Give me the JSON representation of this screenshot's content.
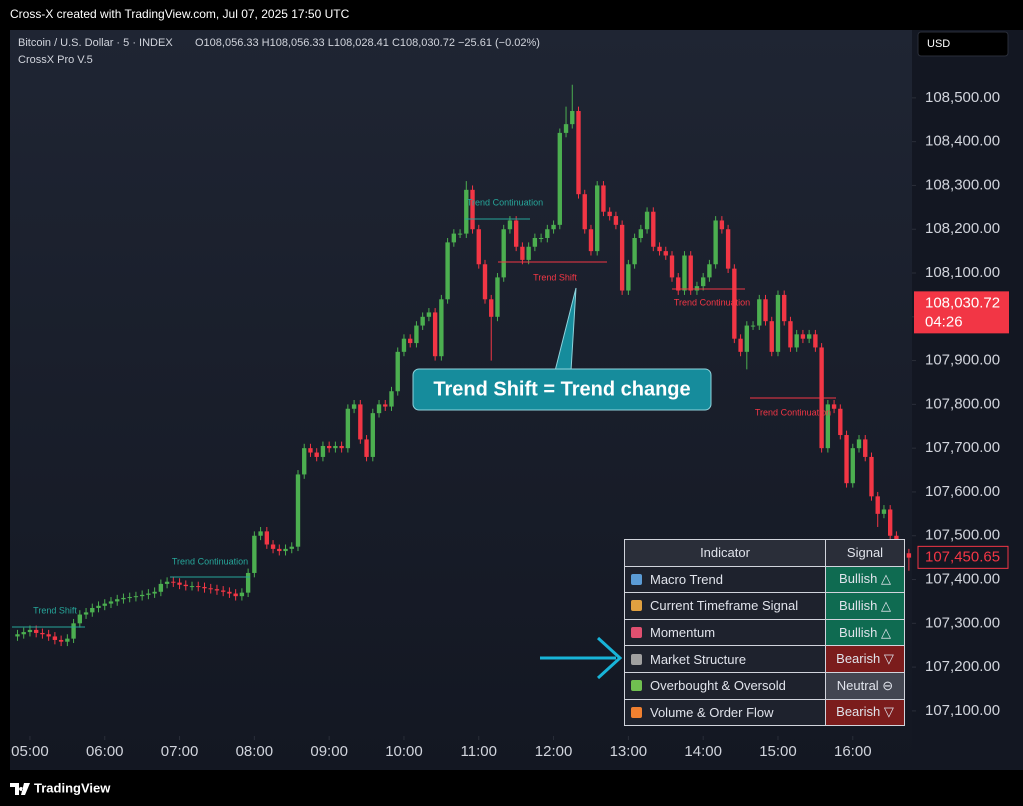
{
  "header": {
    "title": "Cross-X created with TradingView.com, Jul 07, 2025 17:50 UTC",
    "symbol": "Bitcoin / U.S. Dollar · 5 · INDEX",
    "ohlc": "O108,056.33 H108,056.33 L108,028.41 C108,030.72 −25.61 (−0.02%)",
    "indicator": "CrossX Pro V.5",
    "currency": "USD"
  },
  "chart_data": {
    "type": "candlestick",
    "up_color": "#4caf50",
    "down_color": "#f23645",
    "open": [
      107270,
      107275,
      107280,
      107285,
      107278,
      107275,
      107270,
      107262,
      107258,
      107265,
      107300,
      107320,
      107325,
      107335,
      107340,
      107345,
      107350,
      107355,
      107358,
      107360,
      107362,
      107365,
      107368,
      107372,
      107390,
      107395,
      107393,
      107388,
      107385,
      107385,
      107383,
      107380,
      107378,
      107375,
      107372,
      107368,
      107362,
      107370,
      107415,
      107500,
      107510,
      107480,
      107470,
      107465,
      107470,
      107475,
      107640,
      107700,
      107690,
      107680,
      107705,
      107700,
      107705,
      107700,
      107790,
      107800,
      107720,
      107680,
      107780,
      107800,
      107795,
      107830,
      107920,
      107950,
      107940,
      107980,
      108000,
      108010,
      107910,
      108040,
      108170,
      108190,
      108190,
      108290,
      108200,
      108120,
      108040,
      108000,
      108090,
      108200,
      108220,
      108160,
      108130,
      108160,
      108180,
      108180,
      108200,
      108210,
      108420,
      108440,
      108470,
      108280,
      108200,
      108150,
      108300,
      108240,
      108230,
      108210,
      108060,
      108120,
      108180,
      108200,
      108240,
      108160,
      108150,
      108140,
      108090,
      108060,
      108140,
      108060,
      108070,
      108090,
      108120,
      108220,
      108200,
      108110,
      107950,
      107920,
      107980,
      107980,
      108040,
      107990,
      107920,
      108050,
      107990,
      107930,
      107960,
      107950,
      107960,
      107930,
      107700,
      107800,
      107790,
      107730,
      107620,
      107700,
      107720,
      107680,
      107590,
      107550,
      107560,
      107500,
      107470,
      107460
    ],
    "high": [
      107285,
      107290,
      107295,
      107295,
      107288,
      107285,
      107280,
      107272,
      107275,
      107310,
      107330,
      107335,
      107345,
      107350,
      107355,
      107360,
      107365,
      107368,
      107370,
      107372,
      107375,
      107378,
      107382,
      107400,
      107405,
      107405,
      107403,
      107398,
      107395,
      107395,
      107393,
      107390,
      107388,
      107385,
      107382,
      107378,
      107380,
      107425,
      107510,
      107520,
      107520,
      107490,
      107480,
      107480,
      107485,
      107650,
      107710,
      107710,
      107700,
      107715,
      107715,
      107715,
      107715,
      107800,
      107810,
      107810,
      107730,
      107790,
      107810,
      107810,
      107840,
      107930,
      107960,
      107960,
      107990,
      108010,
      108020,
      108020,
      108050,
      108180,
      108200,
      108200,
      108310,
      108300,
      108210,
      108130,
      108050,
      108100,
      108210,
      108230,
      108230,
      108170,
      108170,
      108190,
      108190,
      108210,
      108220,
      108430,
      108480,
      108530,
      108480,
      108290,
      108210,
      108310,
      108310,
      108250,
      108240,
      108220,
      108130,
      108190,
      108210,
      108250,
      108250,
      108170,
      108160,
      108150,
      108100,
      108150,
      108150,
      108080,
      108100,
      108130,
      108230,
      108230,
      108210,
      108120,
      107960,
      107990,
      107990,
      108050,
      108050,
      108000,
      108060,
      108060,
      108000,
      107970,
      107970,
      107970,
      107970,
      107940,
      107810,
      107810,
      107800,
      107740,
      107710,
      107730,
      107730,
      107690,
      107600,
      107570,
      107570,
      107510,
      107480,
      107470
    ],
    "low": [
      107260,
      107265,
      107270,
      107268,
      107265,
      107260,
      107252,
      107248,
      107248,
      107255,
      107290,
      107310,
      107315,
      107325,
      107330,
      107335,
      107340,
      107345,
      107348,
      107350,
      107352,
      107355,
      107358,
      107362,
      107380,
      107383,
      107378,
      107375,
      107375,
      107373,
      107370,
      107368,
      107365,
      107362,
      107358,
      107352,
      107352,
      107360,
      107405,
      107490,
      107470,
      107460,
      107455,
      107455,
      107460,
      107465,
      107630,
      107680,
      107670,
      107670,
      107690,
      107690,
      107690,
      107690,
      107780,
      107710,
      107670,
      107670,
      107770,
      107785,
      107785,
      107820,
      107910,
      107930,
      107930,
      107970,
      107990,
      107900,
      107900,
      108030,
      108160,
      108180,
      108180,
      108190,
      108110,
      108030,
      107900,
      107990,
      108080,
      108190,
      108150,
      108120,
      108120,
      108150,
      108170,
      108170,
      108190,
      108200,
      108410,
      108430,
      108270,
      108190,
      108140,
      108140,
      108230,
      108220,
      108200,
      108050,
      108050,
      108110,
      108170,
      108190,
      108150,
      108140,
      108130,
      108080,
      108050,
      108050,
      108050,
      108050,
      108060,
      108080,
      108110,
      108190,
      108100,
      107940,
      107910,
      107880,
      107970,
      107970,
      107980,
      107910,
      107910,
      107980,
      107920,
      107920,
      107940,
      107940,
      107920,
      107690,
      107690,
      107780,
      107720,
      107610,
      107610,
      107690,
      107670,
      107580,
      107520,
      107540,
      107490,
      107460,
      107450,
      107420
    ],
    "close": [
      107275,
      107280,
      107285,
      107278,
      107275,
      107270,
      107262,
      107258,
      107265,
      107300,
      107320,
      107325,
      107335,
      107340,
      107345,
      107350,
      107355,
      107358,
      107360,
      107362,
      107365,
      107368,
      107372,
      107390,
      107395,
      107393,
      107388,
      107385,
      107385,
      107383,
      107380,
      107378,
      107375,
      107372,
      107368,
      107362,
      107370,
      107415,
      107500,
      107510,
      107480,
      107470,
      107465,
      107470,
      107475,
      107640,
      107700,
      107690,
      107680,
      107705,
      107700,
      107705,
      107700,
      107790,
      107800,
      107720,
      107680,
      107780,
      107800,
      107795,
      107830,
      107920,
      107950,
      107940,
      107980,
      108000,
      108010,
      107910,
      108040,
      108170,
      108190,
      108190,
      108290,
      108200,
      108120,
      108040,
      108000,
      108090,
      108200,
      108220,
      108160,
      108130,
      108160,
      108180,
      108180,
      108200,
      108210,
      108420,
      108440,
      108470,
      108280,
      108200,
      108150,
      108300,
      108240,
      108230,
      108210,
      108060,
      108120,
      108180,
      108200,
      108240,
      108160,
      108150,
      108140,
      108090,
      108060,
      108140,
      108060,
      108070,
      108090,
      108120,
      108220,
      108200,
      108110,
      107950,
      107920,
      107980,
      107980,
      108040,
      107990,
      107920,
      108050,
      107990,
      107930,
      107960,
      107950,
      107960,
      107930,
      107700,
      107800,
      107790,
      107730,
      107620,
      107700,
      107720,
      107680,
      107590,
      107550,
      107560,
      107500,
      107470,
      107460,
      107450
    ],
    "xlim": [
      -1.2,
      143.5
    ],
    "xticks": [
      {
        "value": 2,
        "label": "05:00"
      },
      {
        "value": 14,
        "label": "06:00"
      },
      {
        "value": 26,
        "label": "07:00"
      },
      {
        "value": 38,
        "label": "08:00"
      },
      {
        "value": 50,
        "label": "09:00"
      },
      {
        "value": 62,
        "label": "10:00"
      },
      {
        "value": 74,
        "label": "11:00"
      },
      {
        "value": 86,
        "label": "12:00"
      },
      {
        "value": 98,
        "label": "13:00"
      },
      {
        "value": 110,
        "label": "14:00"
      },
      {
        "value": 122,
        "label": "15:00"
      },
      {
        "value": 134,
        "label": "16:00"
      }
    ],
    "ylim": [
      106965,
      108655
    ],
    "yticks": [
      {
        "value": 107100,
        "label": "107,100.00"
      },
      {
        "value": 107200,
        "label": "107,200.00"
      },
      {
        "value": 107300,
        "label": "107,300.00"
      },
      {
        "value": 107400,
        "label": "107,400.00"
      },
      {
        "value": 107500,
        "label": "107,500.00"
      },
      {
        "value": 107600,
        "label": "107,600.00"
      },
      {
        "value": 107700,
        "label": "107,700.00"
      },
      {
        "value": 107800,
        "label": "107,800.00"
      },
      {
        "value": 107900,
        "label": "107,900.00"
      },
      {
        "value": 108000,
        "label": "108,000.00"
      },
      {
        "value": 108100,
        "label": "108,100.00"
      },
      {
        "value": 108200,
        "label": "108,200.00"
      },
      {
        "value": 108300,
        "label": "108,300.00"
      },
      {
        "value": 108400,
        "label": "108,400.00"
      },
      {
        "value": 108500,
        "label": "108,500.00"
      }
    ],
    "price_tags": [
      {
        "value": 108030.72,
        "label": "108,030.72",
        "countdown": "04:26",
        "color": "#f23645"
      },
      {
        "value": 107450.65,
        "label": "107,450.65",
        "color": "#f23645"
      }
    ],
    "annotations": [
      {
        "text": "Trend Shift",
        "color": "#26a69a"
      },
      {
        "text": "Trend Continuation",
        "color": "#26a69a"
      },
      {
        "text": "Trend Continuation",
        "color": "#26a69a"
      },
      {
        "text": "Trend Shift",
        "color": "#f23645"
      },
      {
        "text": "Trend Continuation",
        "color": "#f23645"
      },
      {
        "text": "Trend Continuation",
        "color": "#f23645"
      }
    ],
    "callout": "Trend Shift = Trend change"
  },
  "table": {
    "header": [
      "Indicator",
      "Signal"
    ],
    "rows": [
      {
        "indicator": "Macro Trend",
        "signal": "Bullish △",
        "color": "#0f6b51"
      },
      {
        "indicator": "Current Timeframe Signal",
        "signal": "Bullish △",
        "color": "#0f6b51"
      },
      {
        "indicator": "Momentum",
        "signal": "Bullish △",
        "color": "#0f6b51"
      },
      {
        "indicator": "Market Structure",
        "signal": "Bearish ▽",
        "color": "#7b1c1c"
      },
      {
        "indicator": "Overbought & Oversold",
        "signal": "Neutral ⊖",
        "color": "#434651"
      },
      {
        "indicator": "Volume & Order Flow",
        "signal": "Bearish ▽",
        "color": "#7b1c1c"
      }
    ]
  },
  "footer": {
    "brand": "TradingView"
  }
}
